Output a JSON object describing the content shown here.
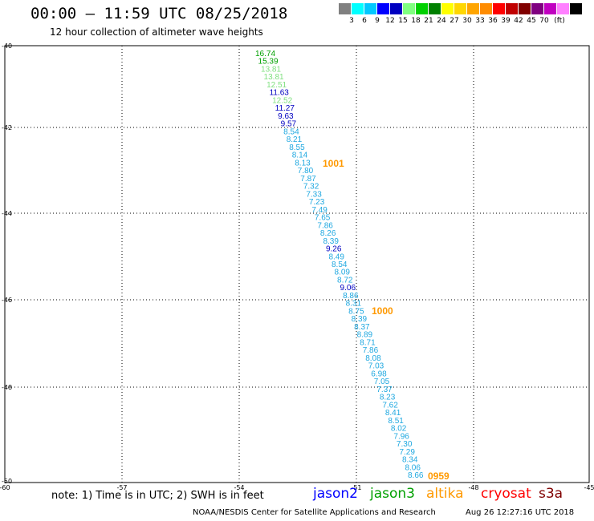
{
  "header": {
    "title": "00:00 – 11:59 UTC 08/25/2018",
    "subtitle": "12 hour collection of altimeter wave heights"
  },
  "scale": {
    "unit": "(ft)",
    "colors": [
      "#808080",
      "#00ffff",
      "#00c8ff",
      "#0000ff",
      "#0000c0",
      "#80ff80",
      "#00d000",
      "#008000",
      "#ffff00",
      "#ffd700",
      "#ffa500",
      "#ff8c00",
      "#ff0000",
      "#c00000",
      "#800000",
      "#800080",
      "#c000c0",
      "#ff80ff",
      "#000000"
    ],
    "labels": [
      "3",
      "6",
      "9",
      "12",
      "15",
      "18",
      "21",
      "24",
      "27",
      "30",
      "33",
      "36",
      "39",
      "42",
      "45",
      "70"
    ]
  },
  "axes": {
    "lat_labels": [
      "-40",
      "-42",
      "-44",
      "-46",
      "-48",
      "-50"
    ],
    "lon_labels": [
      "-60",
      "-57",
      "-54",
      "-51",
      "-48",
      "-45"
    ]
  },
  "observations": [
    {
      "v": "16.74",
      "c": "#00a000"
    },
    {
      "v": "15.39",
      "c": "#00a000"
    },
    {
      "v": "13.81",
      "c": "#80e080"
    },
    {
      "v": "13.81",
      "c": "#80e080"
    },
    {
      "v": "12.51",
      "c": "#80e080"
    },
    {
      "v": "11.63",
      "c": "#0000c0"
    },
    {
      "v": "12.52",
      "c": "#80e080"
    },
    {
      "v": "11.27",
      "c": "#0000c0"
    },
    {
      "v": "9.63",
      "c": "#0000c0"
    },
    {
      "v": "9.57",
      "c": "#0000c0"
    },
    {
      "v": "8.54",
      "c": "#1fa8e0"
    },
    {
      "v": "8.21",
      "c": "#1fa8e0"
    },
    {
      "v": "8.55",
      "c": "#1fa8e0"
    },
    {
      "v": "8.14",
      "c": "#1fa8e0"
    },
    {
      "v": "8.13",
      "c": "#1fa8e0"
    },
    {
      "v": "7.80",
      "c": "#1fa8e0"
    },
    {
      "v": "7.87",
      "c": "#1fa8e0"
    },
    {
      "v": "7.32",
      "c": "#1fa8e0"
    },
    {
      "v": "7.33",
      "c": "#1fa8e0"
    },
    {
      "v": "7.23",
      "c": "#1fa8e0"
    },
    {
      "v": "7.49",
      "c": "#1fa8e0"
    },
    {
      "v": "7.65",
      "c": "#1fa8e0"
    },
    {
      "v": "7.86",
      "c": "#1fa8e0"
    },
    {
      "v": "8.26",
      "c": "#1fa8e0"
    },
    {
      "v": "8.39",
      "c": "#1fa8e0"
    },
    {
      "v": "9.26",
      "c": "#0000c0"
    },
    {
      "v": "8.49",
      "c": "#1fa8e0"
    },
    {
      "v": "8.54",
      "c": "#1fa8e0"
    },
    {
      "v": "8.09",
      "c": "#1fa8e0"
    },
    {
      "v": "8.72",
      "c": "#1fa8e0"
    },
    {
      "v": "9.06",
      "c": "#0000c0"
    },
    {
      "v": "8.86",
      "c": "#1fa8e0"
    },
    {
      "v": "8.31",
      "c": "#1fa8e0"
    },
    {
      "v": "8.75",
      "c": "#1fa8e0"
    },
    {
      "v": "8.39",
      "c": "#1fa8e0"
    },
    {
      "v": "8.37",
      "c": "#1fa8e0"
    },
    {
      "v": "8.89",
      "c": "#1fa8e0"
    },
    {
      "v": "8.71",
      "c": "#1fa8e0"
    },
    {
      "v": "7.86",
      "c": "#1fa8e0"
    },
    {
      "v": "8.08",
      "c": "#1fa8e0"
    },
    {
      "v": "7.03",
      "c": "#1fa8e0"
    },
    {
      "v": "6.98",
      "c": "#1fa8e0"
    },
    {
      "v": "7.05",
      "c": "#1fa8e0"
    },
    {
      "v": "7.37",
      "c": "#1fa8e0"
    },
    {
      "v": "8.23",
      "c": "#1fa8e0"
    },
    {
      "v": "7.62",
      "c": "#1fa8e0"
    },
    {
      "v": "8.41",
      "c": "#1fa8e0"
    },
    {
      "v": "8.51",
      "c": "#1fa8e0"
    },
    {
      "v": "8.02",
      "c": "#1fa8e0"
    },
    {
      "v": "7.96",
      "c": "#1fa8e0"
    },
    {
      "v": "7.30",
      "c": "#1fa8e0"
    },
    {
      "v": "7.29",
      "c": "#1fa8e0"
    },
    {
      "v": "8.34",
      "c": "#1fa8e0"
    },
    {
      "v": "8.06",
      "c": "#1fa8e0"
    },
    {
      "v": "8.66",
      "c": "#1fa8e0"
    }
  ],
  "time_labels": [
    "1001",
    "1000",
    "0959"
  ],
  "time_label_color": "#ff9900",
  "note": "note: 1) Time is in UTC; 2) SWH is in feet",
  "satellites": [
    {
      "name": "jason2",
      "color": "#0000ff"
    },
    {
      "name": "jason3",
      "color": "#00a000"
    },
    {
      "name": "altika",
      "color": "#ff9900"
    },
    {
      "name": "cryosat",
      "color": "#ff0000"
    },
    {
      "name": "s3a",
      "color": "#800000"
    }
  ],
  "credit": "NOAA/NESDIS Center for Satellite Applications and Research",
  "timestamp": "Aug 26 12:27:16 UTC 2018"
}
